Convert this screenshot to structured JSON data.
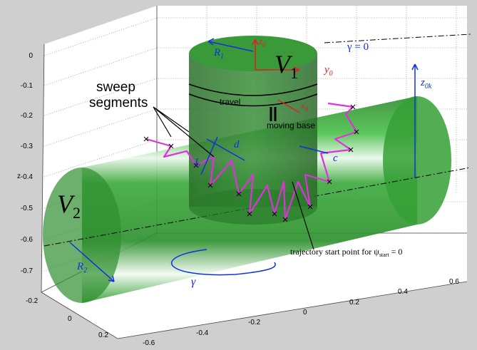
{
  "axes": {
    "z_label": "z",
    "z_ticks": [
      "0",
      "-0.1",
      "-0.2",
      "-0.3",
      "-0.4",
      "-0.5",
      "-0.6",
      "-0.7"
    ],
    "y_ticks": [
      "-0.2",
      "0",
      "0.2"
    ],
    "x_ticks": [
      "-0.6",
      "-0.4",
      "-0.2",
      "0",
      "0.2",
      "0.4",
      "0.6"
    ]
  },
  "labels": {
    "R1": {
      "main": "R",
      "sub": "1"
    },
    "z0": {
      "main": "z",
      "sub": "0"
    },
    "V1": {
      "main": "V",
      "sub": "1"
    },
    "y0": {
      "main": "y",
      "sub": "0"
    },
    "x0": {
      "main": "x",
      "sub": "0"
    },
    "gamma_zero": "γ = 0",
    "z0k": {
      "main": "z",
      "sub": "0k"
    },
    "travel": "travel",
    "moving_base": "moving base",
    "sweep_segments": [
      "sweep",
      "segments"
    ],
    "d": "d",
    "L": "L",
    "c": "c",
    "V2": {
      "main": "V",
      "sub": "2"
    },
    "R2": {
      "main": "R",
      "sub": "2"
    },
    "gamma": "γ",
    "start_point": {
      "text": "trajectory start point for ψ",
      "sub": "start",
      "tail": " = 0"
    }
  }
}
